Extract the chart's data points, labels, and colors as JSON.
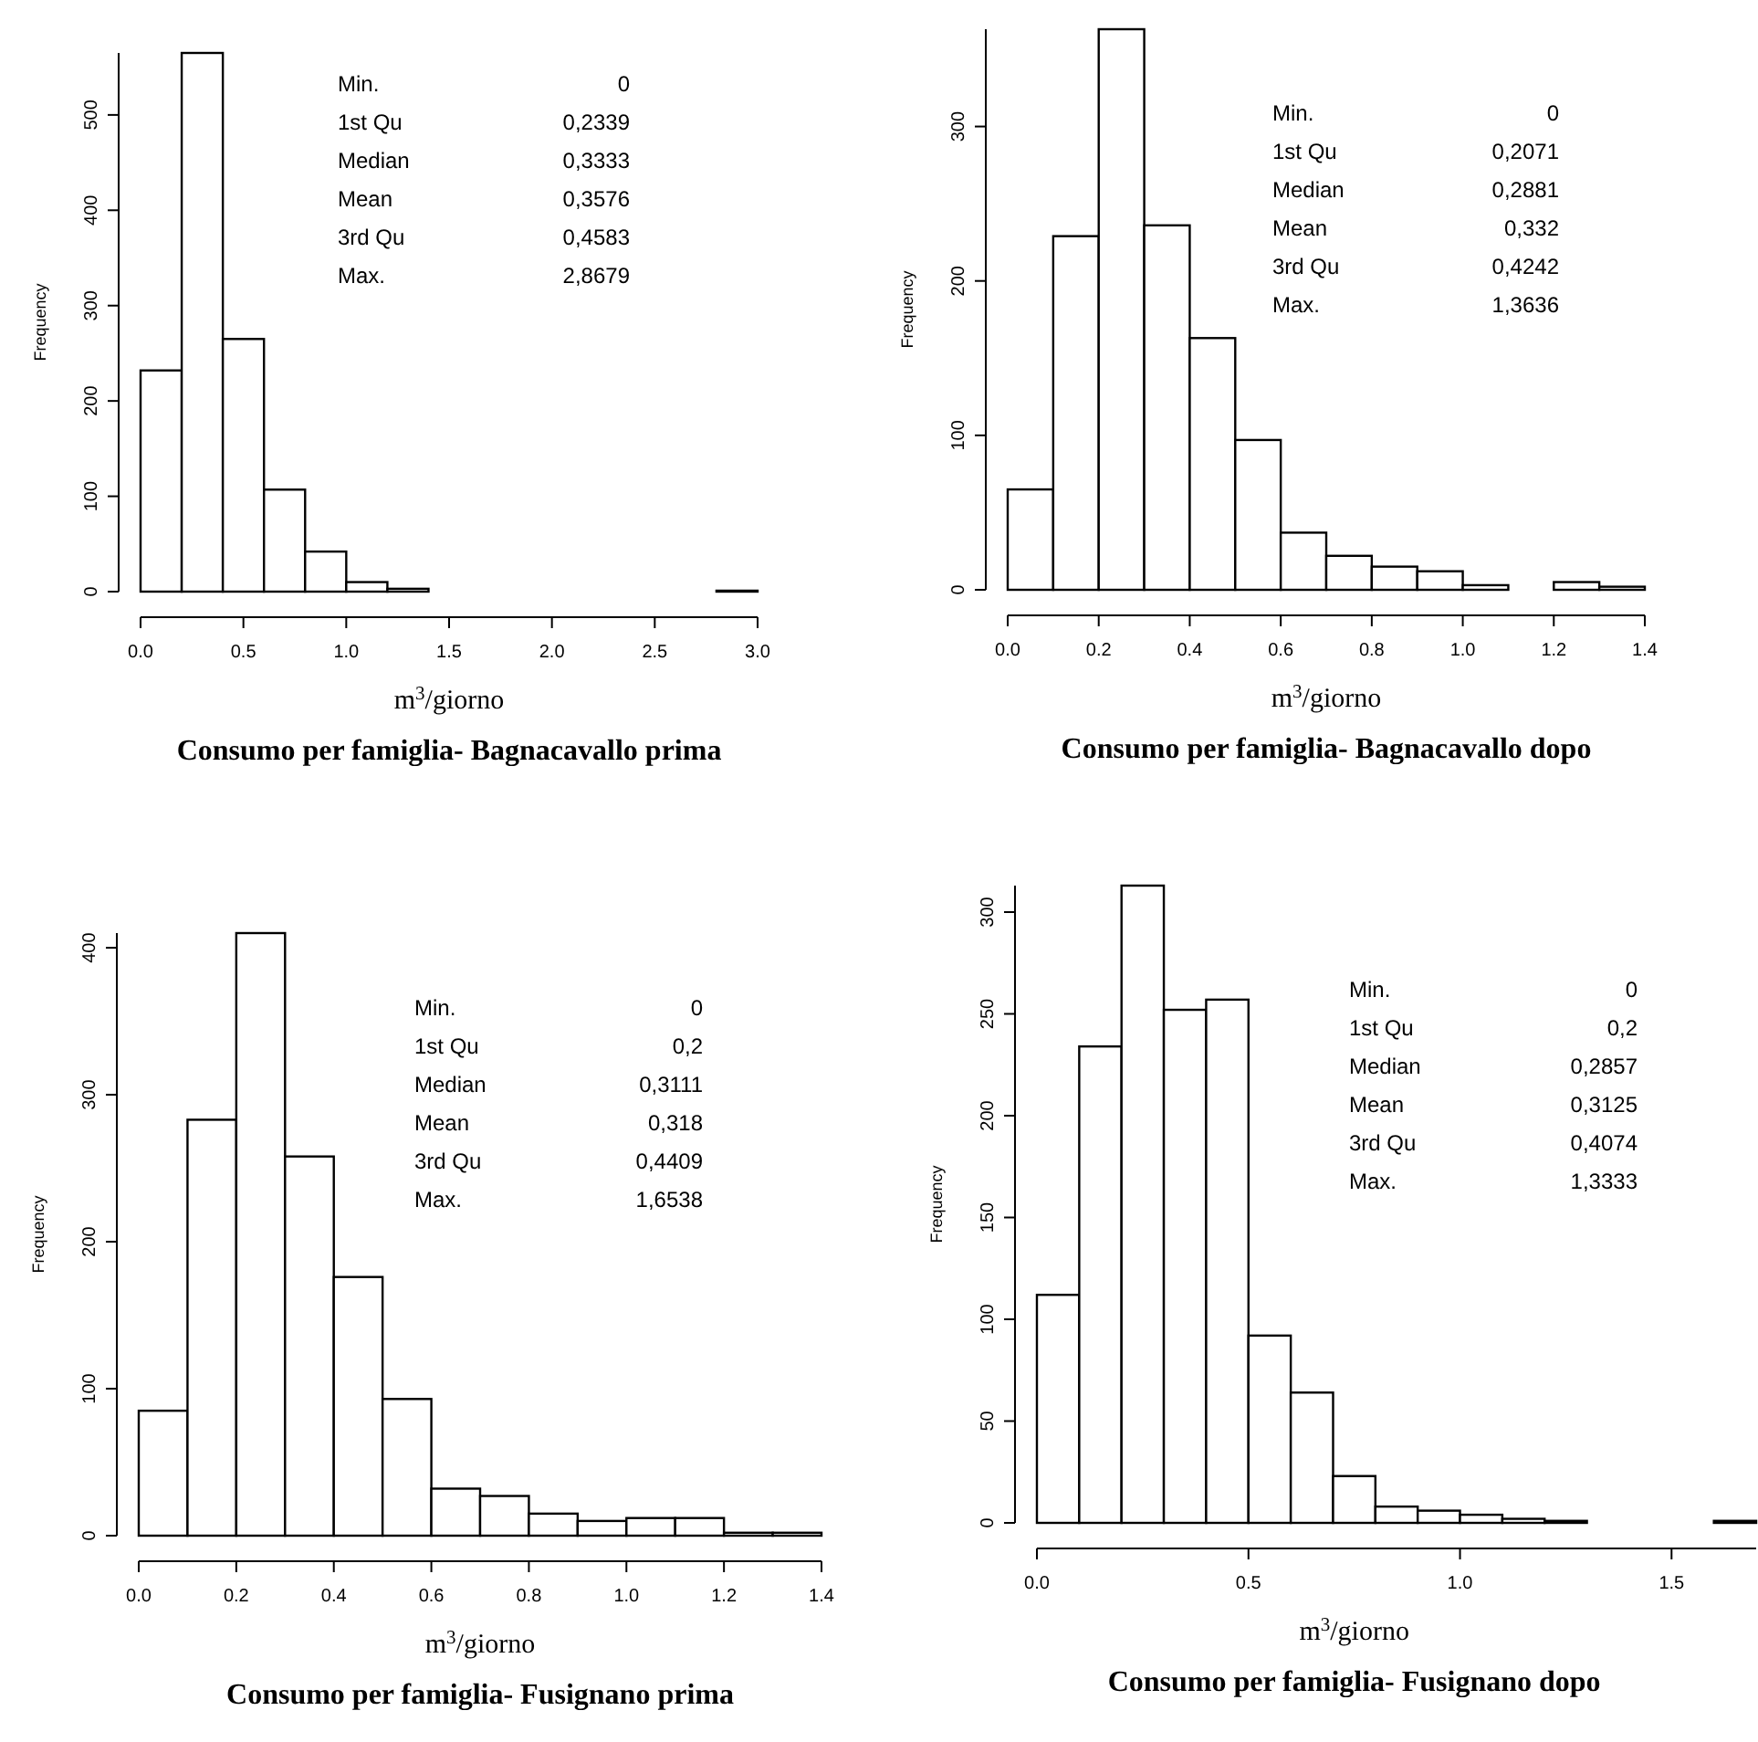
{
  "chart_data": [
    {
      "type": "histogram",
      "title": "Consumo per famiglia- Bagnacavallo prima",
      "xlabel": "m$^{3}$/giorno",
      "ylabel": "Frequency",
      "bins": [
        0,
        0.2,
        0.4,
        0.6,
        0.8,
        1.0,
        1.2,
        1.4,
        1.6,
        1.8,
        2.0,
        2.2,
        2.4,
        2.6,
        2.8,
        3.0
      ],
      "values": [
        232,
        565,
        265,
        107,
        42,
        10,
        3,
        0,
        0,
        0,
        0,
        0,
        0,
        0,
        1
      ],
      "color": "#ffffff",
      "xlim": [
        0,
        3.0
      ],
      "xticks": [
        {
          "value": 0,
          "label": "0.0"
        },
        0.5,
        {
          "value": 1,
          "label": "1.0"
        },
        1.5,
        {
          "value": 2,
          "label": "2.0"
        },
        2.5,
        {
          "value": 3,
          "label": "3.0"
        }
      ],
      "ylim": [
        0,
        565
      ],
      "yticks": [
        0,
        100,
        200,
        300,
        400,
        500
      ],
      "annotations": [
        "Min.",
        "0",
        "1st Qu",
        "0,2339",
        "Median",
        "0,3333",
        "Mean",
        "0,3576",
        "3rd Qu",
        "0,4583",
        "Max.",
        "2,8679"
      ]
    },
    {
      "type": "histogram",
      "title": "Consumo per famiglia- Bagnacavallo dopo",
      "xlabel": "m$^{3}$/giorno",
      "ylabel": "Frequency",
      "bins": [
        0,
        0.1,
        0.2,
        0.3,
        0.4,
        0.5,
        0.6,
        0.7,
        0.8,
        0.9,
        1.0,
        1.1,
        1.2,
        1.3,
        1.4
      ],
      "values": [
        65,
        229,
        363,
        236,
        163,
        97,
        37,
        22,
        15,
        12,
        3,
        0,
        5,
        2
      ],
      "color": "#ffffff",
      "xlim": [
        0,
        1.4
      ],
      "xticks": [
        {
          "value": 0,
          "label": "0.0"
        },
        0.2,
        0.4,
        0.6,
        0.8,
        {
          "value": 1,
          "label": "1.0"
        },
        1.2,
        1.4
      ],
      "ylim": [
        0,
        363
      ],
      "yticks": [
        0,
        100,
        200,
        300
      ],
      "annotations": [
        "Min.",
        "0",
        "1st Qu",
        "0,2071",
        "Median",
        "0,2881",
        "Mean",
        "0,332",
        "3rd Qu",
        "0,4242",
        "Max.",
        "1,3636"
      ]
    },
    {
      "type": "histogram",
      "title": "Consumo per famiglia- Fusignano prima",
      "xlabel": "m$^{3}$/giorno",
      "ylabel": "Frequency",
      "bins": [
        0,
        0.1,
        0.2,
        0.3,
        0.4,
        0.5,
        0.6,
        0.7,
        0.8,
        0.9,
        1.0,
        1.1,
        1.2,
        1.3,
        1.4
      ],
      "values": [
        85,
        283,
        410,
        258,
        176,
        93,
        32,
        27,
        15,
        10,
        12,
        12,
        2,
        2
      ],
      "color": "#ffffff",
      "xlim": [
        0,
        1.4
      ],
      "xticks": [
        {
          "value": 0,
          "label": "0.0"
        },
        0.2,
        0.4,
        0.6,
        0.8,
        {
          "value": 1,
          "label": "1.0"
        },
        1.2,
        1.4
      ],
      "ylim": [
        0,
        410
      ],
      "yticks": [
        0,
        100,
        200,
        300,
        400
      ],
      "annotations": [
        "Min.",
        "0",
        "1st Qu",
        "0,2",
        "Median",
        "0,3111",
        "Mean",
        "0,318",
        "3rd Qu",
        "0,4409",
        "Max.",
        "1,6538"
      ]
    },
    {
      "type": "histogram",
      "title": "Consumo per famiglia- Fusignano dopo",
      "xlabel": "m$^{3}$/giorno",
      "ylabel": "Frequency",
      "bins": [
        0,
        0.1,
        0.2,
        0.3,
        0.4,
        0.5,
        0.6,
        0.7,
        0.8,
        0.9,
        1.0,
        1.1,
        1.2,
        1.3,
        1.4,
        1.5,
        1.6,
        1.7
      ],
      "values": [
        112,
        234,
        313,
        252,
        257,
        92,
        64,
        23,
        8,
        6,
        4,
        2,
        1,
        0,
        0,
        0,
        1
      ],
      "color": "#ffffff",
      "xlim": [
        0,
        1.7
      ],
      "xticks": [
        {
          "value": 0,
          "label": "0.0"
        },
        0.5,
        {
          "value": 1,
          "label": "1.0"
        },
        1.5
      ],
      "ylim": [
        0,
        313
      ],
      "yticks": [
        0,
        50,
        100,
        150,
        200,
        250,
        300
      ],
      "annotations": [
        "Min.",
        "0",
        "1st Qu",
        "0,2",
        "Median",
        "0,2857",
        "Mean",
        "0,3125",
        "3rd Qu",
        "0,4074",
        "Max.",
        "1,3333"
      ]
    }
  ]
}
